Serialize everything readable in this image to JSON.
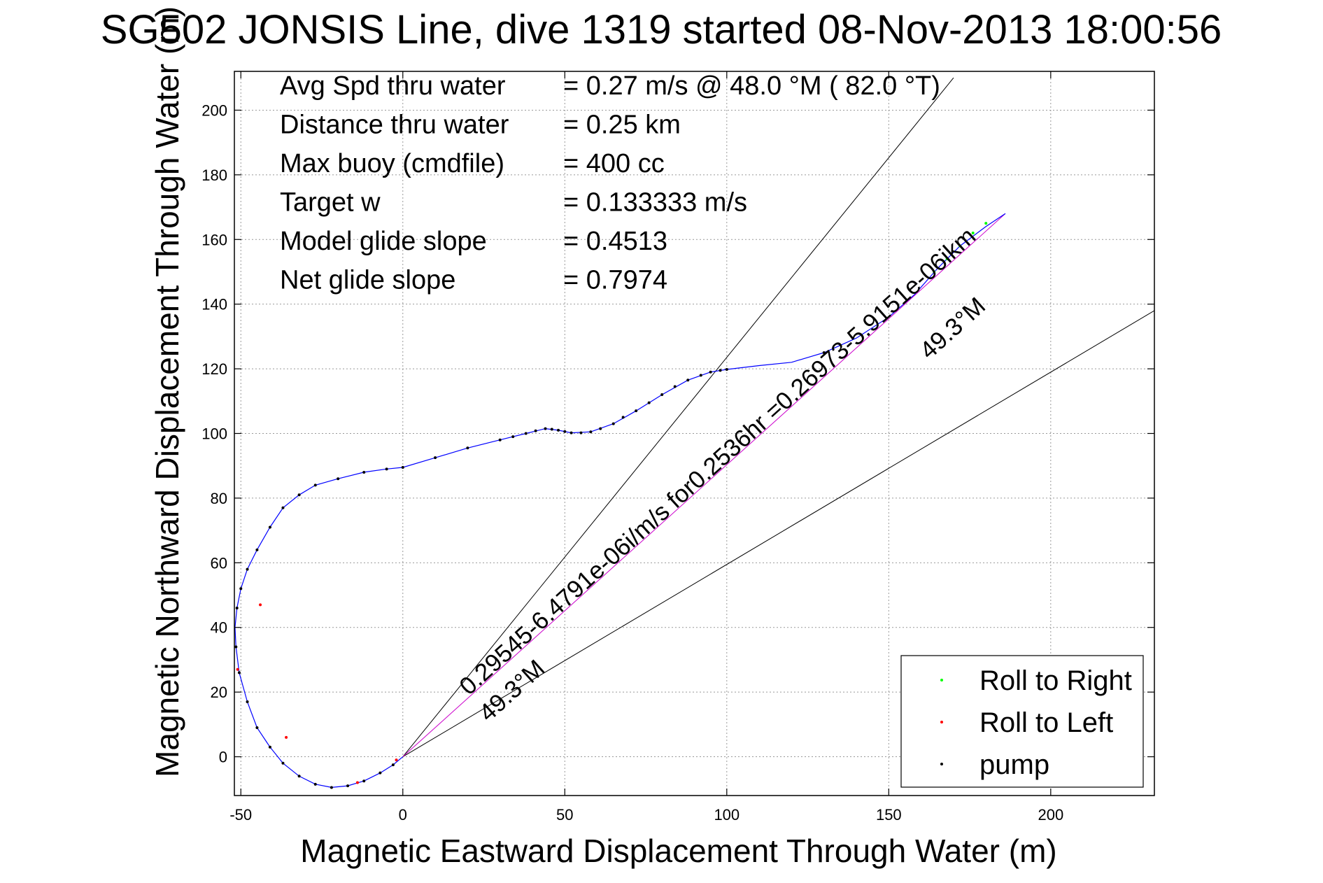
{
  "chart_data": {
    "type": "scatter",
    "title": "SG502 JONSIS Line, dive 1319 started 08-Nov-2013 18:00:56",
    "xlabel": "Magnetic Eastward Displacement Through Water (m)",
    "ylabel": "Magnetic Northward Displacement Through Water (m)",
    "xlim": [
      -52,
      232
    ],
    "ylim": [
      -12,
      212
    ],
    "x_ticks": [
      -50,
      0,
      50,
      100,
      150,
      200
    ],
    "y_ticks": [
      0,
      20,
      40,
      60,
      80,
      100,
      120,
      140,
      160,
      180,
      200
    ],
    "grid": true,
    "legend_position": "bottom-right",
    "info": [
      {
        "label": "Avg Spd thru water",
        "value": "=  0.27 m/s @  48.0 °M ( 82.0 °T)"
      },
      {
        "label": "Distance thru water",
        "value": "=  0.25 km"
      },
      {
        "label": "Max buoy (cmdfile)",
        "value": "= 400 cc"
      },
      {
        "label": "Target w",
        "value": "= 0.133333 m/s"
      },
      {
        "label": "Model glide slope",
        "value": "= 0.4513"
      },
      {
        "label": "Net glide slope",
        "value": "= 0.7974"
      }
    ],
    "annotations": {
      "current_text": "0.29545-6.4791e-06i/m/s for0.2536hr =0.26973-5.9151e-06ikm",
      "heading_lower": "49.3°M",
      "heading_upper": "49.3°M"
    },
    "reference_lines": [
      {
        "from": [
          0,
          0
        ],
        "to": [
          170,
          210
        ]
      },
      {
        "from": [
          0,
          0
        ],
        "to": [
          232,
          138
        ]
      },
      {
        "from": [
          0,
          0
        ],
        "to": [
          186,
          168
        ]
      }
    ],
    "track": {
      "x": [
        0,
        -3,
        -7,
        -12,
        -17,
        -22,
        -27,
        -32,
        -37,
        -41,
        -45,
        -48,
        -50.5,
        -51.5,
        -51.8,
        -51.2,
        -50,
        -48,
        -45,
        -41,
        -37,
        -32,
        -27,
        -20,
        -12,
        -5,
        0,
        10,
        20,
        30,
        38,
        44,
        48,
        52,
        58,
        65,
        72,
        80,
        88,
        95,
        100,
        110,
        120,
        130,
        140,
        150,
        158,
        165,
        172,
        180,
        186
      ],
      "y": [
        0,
        -2.5,
        -5,
        -7.5,
        -9,
        -9.5,
        -8.5,
        -6,
        -2,
        3,
        9,
        17,
        26,
        34,
        40,
        46,
        52,
        58,
        64,
        71,
        77,
        81,
        84,
        86,
        88,
        89,
        89.5,
        92.5,
        95.5,
        98,
        100,
        101.5,
        101,
        100.2,
        100.5,
        103,
        107,
        112,
        116.5,
        119,
        119.8,
        121,
        122,
        125,
        129.5,
        136,
        143,
        151,
        158,
        164,
        168
      ]
    },
    "legend": [
      {
        "name": "Roll to Right",
        "color": "#00ff00"
      },
      {
        "name": "Roll to Left",
        "color": "#ff0000"
      },
      {
        "name": "pump",
        "color": "#000000"
      }
    ],
    "series": [
      {
        "name": "Roll to Right",
        "color": "#00ff00",
        "x": [
          164,
          168,
          172,
          176,
          180
        ],
        "y": [
          150,
          154,
          158,
          162,
          165
        ]
      },
      {
        "name": "Roll to Left",
        "color": "#ff0000",
        "x": [
          -2,
          -14,
          -36,
          -44,
          -51
        ],
        "y": [
          -1,
          -8,
          6,
          47,
          27
        ]
      },
      {
        "name": "pump",
        "color": "#000000",
        "x": [
          -3,
          -7,
          -12,
          -17,
          -22,
          -27,
          -32,
          -37,
          -41,
          -45,
          -48,
          -50.5,
          -51.5,
          -51.2,
          -50,
          -48,
          -45,
          -41,
          -37,
          -32,
          -27,
          -20,
          -12,
          -5,
          0,
          10,
          20,
          30,
          34,
          38,
          41,
          44,
          46,
          48,
          50,
          52,
          55,
          58,
          61,
          65,
          68,
          72,
          76,
          80,
          84,
          88,
          92,
          95,
          98,
          100,
          130
        ],
        "y": [
          -2.5,
          -5,
          -7.5,
          -9,
          -9.5,
          -8.5,
          -6,
          -2,
          3,
          9,
          17,
          26,
          34,
          46,
          52,
          58,
          64,
          71,
          77,
          81,
          84,
          86,
          88,
          89,
          89.5,
          92.5,
          95.5,
          98,
          99,
          100,
          100.8,
          101.5,
          101.3,
          101,
          100.6,
          100.2,
          100.2,
          100.5,
          101.5,
          103,
          105,
          107,
          109.5,
          112,
          114.5,
          116.5,
          118,
          119,
          119.5,
          119.8,
          125
        ]
      }
    ]
  }
}
